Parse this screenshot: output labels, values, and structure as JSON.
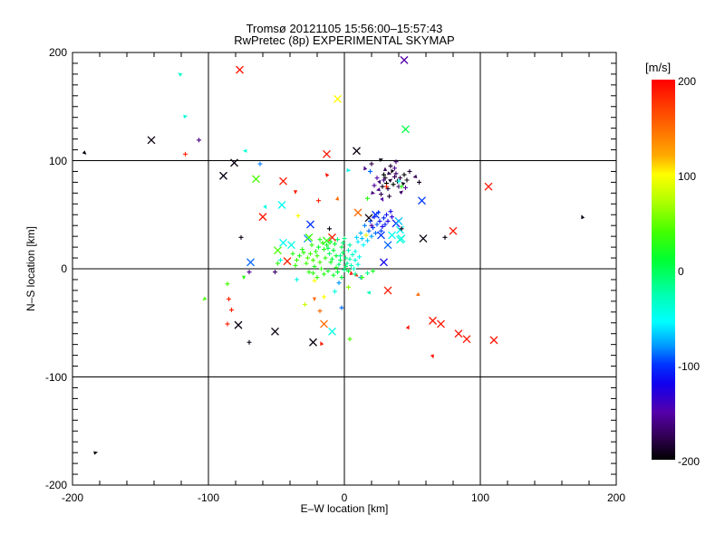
{
  "window": {
    "background": "#ffffff",
    "foreground": "#000000"
  },
  "title": {
    "line1": "Tromsø 20121105 15:56:00–15:57:43",
    "line2": "RwPretec (8p) EXPERIMENTAL SKYMAP"
  },
  "chart_data": {
    "type": "scatter",
    "title": "Tromsø 20121105 15:56:00–15:57:43",
    "subtitle": "RwPretec (8p) EXPERIMENTAL SKYMAP",
    "xlabel": "E–W location [km]",
    "ylabel": "N–S location [km]",
    "xlim": [
      -200,
      200
    ],
    "ylim": [
      -200,
      200
    ],
    "xticks": [
      "-200",
      "-100",
      "0",
      "100",
      "200"
    ],
    "yticks": [
      "200",
      "100",
      "0",
      "-100",
      "-200"
    ],
    "xtick_values": [
      -200,
      -100,
      0,
      100,
      200
    ],
    "ytick_values": [
      200,
      100,
      0,
      -100,
      -200
    ],
    "grid_lines_x": [
      -100,
      0,
      100
    ],
    "grid_lines_y": [
      -100,
      0,
      100
    ],
    "grid": true,
    "axis_color": "#000000",
    "colorbar": {
      "title": "[m/s]",
      "tick_labels": [
        "200",
        "100",
        "0",
        "-100",
        "-200"
      ],
      "tick_values": [
        200,
        100,
        0,
        -100,
        -200
      ],
      "range": [
        -200,
        200
      ],
      "stops": [
        [
          200,
          "#ff0000"
        ],
        [
          160,
          "#ff5500"
        ],
        [
          120,
          "#ffaa00"
        ],
        [
          100,
          "#ffff00"
        ],
        [
          70,
          "#aaff00"
        ],
        [
          40,
          "#44ff00"
        ],
        [
          10,
          "#00ff33"
        ],
        [
          0,
          "#00ff55"
        ],
        [
          -30,
          "#00ffbb"
        ],
        [
          -55,
          "#00ffff"
        ],
        [
          -80,
          "#0099ff"
        ],
        [
          -100,
          "#0033ff"
        ],
        [
          -120,
          "#1100ee"
        ],
        [
          -150,
          "#5500aa"
        ],
        [
          -175,
          "#330055"
        ],
        [
          -200,
          "#000000"
        ]
      ]
    },
    "point_format": [
      "x_km",
      "y_km",
      "velocity_m_per_s",
      "marker"
    ],
    "points": [
      [
        -142,
        119,
        -195,
        "x"
      ],
      [
        -77,
        184,
        190,
        "x"
      ],
      [
        -5,
        157,
        100,
        "x"
      ],
      [
        44,
        193,
        -150,
        "x"
      ],
      [
        45,
        129,
        5,
        "x"
      ],
      [
        9,
        109,
        -195,
        "x"
      ],
      [
        -13,
        106,
        190,
        "x"
      ],
      [
        -81,
        98,
        -195,
        "x"
      ],
      [
        -89,
        86,
        -195,
        "x"
      ],
      [
        -65,
        83,
        40,
        "x"
      ],
      [
        -45,
        81,
        190,
        "x"
      ],
      [
        -46,
        59,
        -50,
        "x"
      ],
      [
        -60,
        48,
        190,
        "x"
      ],
      [
        -25,
        41,
        -100,
        "x"
      ],
      [
        106,
        76,
        190,
        "x"
      ],
      [
        57,
        63,
        -100,
        "x"
      ],
      [
        80,
        35,
        190,
        "x"
      ],
      [
        58,
        28,
        -195,
        "x"
      ],
      [
        42,
        28,
        -45,
        "x"
      ],
      [
        -69,
        6,
        -90,
        "x"
      ],
      [
        -42,
        7,
        185,
        "x"
      ],
      [
        29,
        6,
        -120,
        "x"
      ],
      [
        32,
        -20,
        190,
        "x"
      ],
      [
        65,
        -48,
        190,
        "x"
      ],
      [
        71,
        -51,
        190,
        "x"
      ],
      [
        84,
        -60,
        190,
        "x"
      ],
      [
        90,
        -65,
        190,
        "x"
      ],
      [
        110,
        -66,
        190,
        "x"
      ],
      [
        -78,
        -52,
        -195,
        "x"
      ],
      [
        -51,
        -58,
        -195,
        "x"
      ],
      [
        -15,
        -51,
        150,
        "x"
      ],
      [
        -9,
        -58,
        -45,
        "x"
      ],
      [
        -23,
        -68,
        -195,
        "x"
      ],
      [
        10,
        52,
        150,
        "x"
      ],
      [
        23,
        50,
        -100,
        "x"
      ],
      [
        18,
        47,
        -195,
        "x"
      ],
      [
        38,
        42,
        -110,
        "x"
      ],
      [
        27,
        31,
        -100,
        "x"
      ],
      [
        35,
        31,
        -50,
        "x"
      ],
      [
        41,
        27,
        -40,
        "x"
      ],
      [
        32,
        22,
        -90,
        "x"
      ],
      [
        -27,
        28,
        -85,
        "x"
      ],
      [
        -26,
        29,
        40,
        "x"
      ],
      [
        -13,
        26,
        30,
        "x"
      ],
      [
        -9,
        29,
        190,
        "x"
      ],
      [
        -39,
        22,
        -45,
        "x"
      ],
      [
        -45,
        24,
        -50,
        "x"
      ],
      [
        -49,
        17,
        40,
        "x"
      ],
      [
        40,
        44,
        -70,
        "x"
      ],
      [
        41,
        36,
        -55,
        "x"
      ],
      [
        -3,
        8,
        0,
        "+"
      ],
      [
        1,
        10,
        -10,
        "+"
      ],
      [
        -6,
        12,
        10,
        "+"
      ],
      [
        -10,
        6,
        20,
        "+"
      ],
      [
        2,
        5,
        -20,
        "+"
      ],
      [
        -1,
        15,
        0,
        "+"
      ],
      [
        -8,
        17,
        10,
        "+"
      ],
      [
        -14,
        10,
        30,
        "+"
      ],
      [
        -18,
        6,
        40,
        "+"
      ],
      [
        -12,
        -2,
        20,
        "+"
      ],
      [
        -5,
        -3,
        10,
        "+"
      ],
      [
        0,
        -1,
        -15,
        "+"
      ],
      [
        4,
        9,
        -25,
        "+"
      ],
      [
        6,
        13,
        -35,
        "+"
      ],
      [
        -2,
        20,
        5,
        "+"
      ],
      [
        -7,
        23,
        15,
        "+"
      ],
      [
        -15,
        18,
        25,
        "+"
      ],
      [
        -20,
        12,
        35,
        "+"
      ],
      [
        -23,
        8,
        40,
        "+"
      ],
      [
        -17,
        0,
        30,
        "+"
      ],
      [
        -11,
        14,
        -5,
        "+"
      ],
      [
        -4,
        4,
        -12,
        "+"
      ],
      [
        3,
        17,
        -30,
        "+"
      ],
      [
        -1,
        24,
        -8,
        "+"
      ],
      [
        -9,
        9,
        8,
        "+"
      ],
      [
        -13,
        22,
        18,
        "+"
      ],
      [
        -6,
        1,
        22,
        "+"
      ],
      [
        -21,
        16,
        28,
        "+"
      ],
      [
        -3,
        12,
        -18,
        "+"
      ],
      [
        1,
        2,
        -5,
        "+"
      ],
      [
        -16,
        24,
        33,
        "+"
      ],
      [
        -19,
        20,
        12,
        "+"
      ],
      [
        -25,
        14,
        38,
        "+"
      ],
      [
        -22,
        2,
        25,
        "+"
      ],
      [
        -8,
        -6,
        15,
        "+"
      ],
      [
        -2,
        -8,
        5,
        "+"
      ],
      [
        5,
        3,
        -28,
        "+"
      ],
      [
        8,
        8,
        -40,
        "+"
      ],
      [
        7,
        0,
        -33,
        "+"
      ],
      [
        -27,
        10,
        42,
        "+"
      ],
      [
        -30,
        15,
        30,
        "+"
      ],
      [
        -12,
        19,
        3,
        "+"
      ],
      [
        -10,
        25,
        14,
        "+"
      ],
      [
        -5,
        27,
        -3,
        "+"
      ],
      [
        0,
        28,
        -13,
        "+"
      ],
      [
        -18,
        27,
        22,
        "+"
      ],
      [
        -24,
        22,
        31,
        "+"
      ],
      [
        -28,
        5,
        36,
        "+"
      ],
      [
        -15,
        -5,
        26,
        "+"
      ],
      [
        -20,
        -8,
        33,
        "+"
      ],
      [
        4,
        22,
        -22,
        "+"
      ],
      [
        8,
        16,
        -45,
        "+"
      ],
      [
        11,
        11,
        -50,
        "+"
      ],
      [
        10,
        4,
        -42,
        "+"
      ],
      [
        -33,
        12,
        25,
        "+"
      ],
      [
        -35,
        8,
        35,
        "+"
      ],
      [
        -31,
        18,
        28,
        "+"
      ],
      [
        -26,
        -3,
        30,
        "+"
      ],
      [
        -36,
        3,
        32,
        "+"
      ],
      [
        -38,
        14,
        27,
        "+"
      ],
      [
        -47,
        8,
        -40,
        "+"
      ],
      [
        -49,
        5,
        30,
        "+"
      ],
      [
        10,
        25,
        -60,
        "+"
      ],
      [
        13,
        28,
        -70,
        "+"
      ],
      [
        16,
        31,
        -80,
        "+"
      ],
      [
        18,
        35,
        -90,
        "+"
      ],
      [
        21,
        38,
        -100,
        "+"
      ],
      [
        24,
        41,
        -95,
        "+"
      ],
      [
        26,
        44,
        -110,
        "+"
      ],
      [
        29,
        47,
        -105,
        "+"
      ],
      [
        31,
        50,
        -115,
        "+"
      ],
      [
        34,
        53,
        -120,
        "+"
      ],
      [
        12,
        33,
        -75,
        "+"
      ],
      [
        15,
        40,
        -85,
        "+"
      ],
      [
        19,
        44,
        -95,
        "+"
      ],
      [
        22,
        48,
        -110,
        "+"
      ],
      [
        25,
        52,
        -100,
        "+"
      ],
      [
        9,
        29,
        -65,
        "+"
      ],
      [
        28,
        39,
        -120,
        "+"
      ],
      [
        32,
        44,
        -125,
        "+"
      ],
      [
        35,
        48,
        -130,
        "+"
      ],
      [
        14,
        22,
        -55,
        "+"
      ],
      [
        17,
        26,
        -68,
        "+"
      ],
      [
        20,
        30,
        -78,
        "+"
      ],
      [
        23,
        33,
        -88,
        "+"
      ],
      [
        27,
        35,
        -98,
        "+"
      ],
      [
        30,
        41,
        -108,
        "+"
      ],
      [
        28,
        76,
        -190,
        "+"
      ],
      [
        31,
        79,
        -200,
        "+"
      ],
      [
        34,
        82,
        -185,
        "."
      ],
      [
        37,
        85,
        -175,
        "+"
      ],
      [
        30,
        84,
        -195,
        "+"
      ],
      [
        33,
        88,
        -180,
        "."
      ],
      [
        36,
        78,
        -200,
        "+"
      ],
      [
        39,
        81,
        -190,
        "+"
      ],
      [
        26,
        80,
        -170,
        "."
      ],
      [
        29,
        87,
        -200,
        "+"
      ],
      [
        32,
        74,
        -185,
        "+"
      ],
      [
        35,
        90,
        -195,
        "."
      ],
      [
        38,
        88,
        -170,
        "+"
      ],
      [
        41,
        84,
        -180,
        "+"
      ],
      [
        25,
        73,
        -160,
        "."
      ],
      [
        27,
        69,
        -175,
        "+"
      ],
      [
        40,
        76,
        -165,
        "+"
      ],
      [
        43,
        79,
        -190,
        "."
      ],
      [
        24,
        84,
        -150,
        "+"
      ],
      [
        44,
        87,
        -200,
        "+"
      ],
      [
        30,
        92,
        -175,
        "."
      ],
      [
        34,
        95,
        -185,
        "+"
      ],
      [
        22,
        77,
        -155,
        "+"
      ],
      [
        42,
        71,
        -170,
        "."
      ],
      [
        37,
        93,
        -160,
        "+"
      ],
      [
        46,
        82,
        -195,
        "+"
      ],
      [
        21,
        70,
        -165,
        "."
      ],
      [
        45,
        75,
        -155,
        "+"
      ],
      [
        33,
        67,
        -185,
        "+"
      ],
      [
        28,
        64,
        -150,
        "."
      ],
      [
        20,
        97,
        -180,
        "+"
      ],
      [
        27,
        101,
        -195,
        "."
      ],
      [
        38,
        99,
        -170,
        "+"
      ],
      [
        15,
        93,
        -160,
        "."
      ],
      [
        48,
        90,
        -185,
        "+"
      ],
      [
        52,
        85,
        -175,
        "."
      ],
      [
        55,
        80,
        -190,
        "+"
      ],
      [
        19,
        90,
        -90,
        "+"
      ],
      [
        -121,
        180,
        -35,
        "."
      ],
      [
        -117,
        141,
        -40,
        "."
      ],
      [
        -107,
        119,
        -160,
        "+"
      ],
      [
        -117,
        106,
        185,
        "+"
      ],
      [
        -191,
        107,
        -195,
        "."
      ],
      [
        -73,
        109,
        -40,
        "."
      ],
      [
        -62,
        97,
        -85,
        "+"
      ],
      [
        -36,
        71,
        190,
        "."
      ],
      [
        -13,
        87,
        190,
        "."
      ],
      [
        3,
        91,
        -45,
        "."
      ],
      [
        -19,
        63,
        185,
        "+"
      ],
      [
        -5,
        65,
        150,
        "."
      ],
      [
        -58,
        57,
        -45,
        "."
      ],
      [
        -34,
        49,
        100,
        "+"
      ],
      [
        -76,
        29,
        -195,
        "+"
      ],
      [
        74,
        29,
        -195,
        "+"
      ],
      [
        175,
        48,
        -195,
        "."
      ],
      [
        17,
        65,
        30,
        "+"
      ],
      [
        31,
        76,
        185,
        "+"
      ],
      [
        40,
        81,
        -45,
        "+"
      ],
      [
        42,
        76,
        30,
        "+"
      ],
      [
        29,
        82,
        -160,
        "+"
      ],
      [
        -11,
        37,
        -195,
        "+"
      ],
      [
        16,
        31,
        100,
        "+"
      ],
      [
        42,
        37,
        -195,
        "+"
      ],
      [
        20,
        40,
        -155,
        "+"
      ],
      [
        -70,
        -3,
        -160,
        "+"
      ],
      [
        -51,
        -3,
        -170,
        "+"
      ],
      [
        -74,
        -8,
        30,
        "."
      ],
      [
        -86,
        -14,
        40,
        "+"
      ],
      [
        -22,
        -11,
        100,
        "+"
      ],
      [
        -103,
        -28,
        40,
        "."
      ],
      [
        -85,
        -28,
        185,
        "+"
      ],
      [
        -83,
        -38,
        185,
        "+"
      ],
      [
        -29,
        -33,
        80,
        "+"
      ],
      [
        -2,
        -36,
        -90,
        "+"
      ],
      [
        -86,
        -51,
        185,
        "+"
      ],
      [
        -17,
        -69,
        190,
        "."
      ],
      [
        -70,
        -68,
        -195,
        "+"
      ],
      [
        54,
        -24,
        150,
        "."
      ],
      [
        47,
        -54,
        190,
        "."
      ],
      [
        65,
        -81,
        190,
        "."
      ],
      [
        4,
        -65,
        40,
        "+"
      ],
      [
        -183,
        -170,
        -195,
        "."
      ],
      [
        12,
        -8,
        -80,
        "+"
      ],
      [
        5,
        -4,
        190,
        "."
      ],
      [
        9,
        -6,
        185,
        "."
      ],
      [
        -18,
        -39,
        150,
        "+"
      ],
      [
        -15,
        -26,
        100,
        "+"
      ],
      [
        -22,
        -28,
        150,
        "."
      ],
      [
        -35,
        -10,
        -45,
        "+"
      ],
      [
        -7,
        -21,
        -45,
        "+"
      ],
      [
        -4,
        -13,
        -80,
        "+"
      ],
      [
        -23,
        -4,
        30,
        "+"
      ],
      [
        3,
        -17,
        60,
        "+"
      ],
      [
        18,
        -22,
        -30,
        "."
      ],
      [
        3,
        -2,
        10,
        "+"
      ],
      [
        8,
        -5,
        -20,
        "+"
      ],
      [
        13,
        -8,
        30,
        "+"
      ],
      [
        17,
        -4,
        -15,
        "+"
      ],
      [
        21,
        -2,
        20,
        "+"
      ]
    ]
  }
}
